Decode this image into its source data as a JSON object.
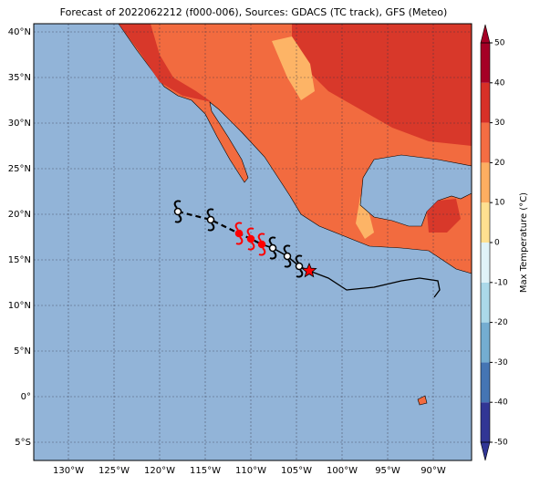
{
  "title": "Forecast of 2022062212 (f000-006), Sources: GDACS (TC track), GFS (Meteo)",
  "map": {
    "lon_lim": [
      -133.8,
      -85.8
    ],
    "lat_lim": [
      -7,
      40.9
    ],
    "lon_ticks": [
      {
        "value": -130,
        "label": "130°W"
      },
      {
        "value": -125,
        "label": "125°W"
      },
      {
        "value": -120,
        "label": "120°W"
      },
      {
        "value": -115,
        "label": "115°W"
      },
      {
        "value": -110,
        "label": "110°W"
      },
      {
        "value": -105,
        "label": "105°W"
      },
      {
        "value": -100,
        "label": "100°W"
      },
      {
        "value": -95,
        "label": "95°W"
      },
      {
        "value": -90,
        "label": "90°W"
      }
    ],
    "lat_ticks": [
      {
        "value": -5,
        "label": "5°S"
      },
      {
        "value": 0,
        "label": "0°"
      },
      {
        "value": 5,
        "label": "5°N"
      },
      {
        "value": 10,
        "label": "10°N"
      },
      {
        "value": 15,
        "label": "15°N"
      },
      {
        "value": 20,
        "label": "20°N"
      },
      {
        "value": 25,
        "label": "25°N"
      },
      {
        "value": 30,
        "label": "30°N"
      },
      {
        "value": 35,
        "label": "35°N"
      },
      {
        "value": 40,
        "label": "40°N"
      }
    ]
  },
  "colorbar": {
    "label": "Max Temperature (°C)",
    "lim": [
      -50,
      50
    ],
    "ticks": [
      -50,
      -40,
      -30,
      -20,
      -10,
      0,
      10,
      20,
      30,
      40,
      50
    ],
    "colors": [
      "#313695",
      "#4575b4",
      "#74add1",
      "#abd9e9",
      "#e0f3f8",
      "#fee090",
      "#fdae61",
      "#f46d43",
      "#d73027",
      "#a50026"
    ]
  },
  "track": [
    {
      "lon": -118,
      "lat": 20.3,
      "color": "#ffffff"
    },
    {
      "lon": -114.4,
      "lat": 19.4,
      "color": "#ffffff"
    },
    {
      "lon": -111.3,
      "lat": 17.9,
      "color": "#ff0000"
    },
    {
      "lon": -110,
      "lat": 17.3,
      "color": "#ff0000"
    },
    {
      "lon": -108.8,
      "lat": 16.7,
      "color": "#ff0000"
    },
    {
      "lon": -107.6,
      "lat": 16.3,
      "color": "#ffffff"
    },
    {
      "lon": -106,
      "lat": 15.4,
      "color": "#ffffff"
    },
    {
      "lon": -104.7,
      "lat": 14.3,
      "color": "#ffffff"
    },
    {
      "lon": -103.6,
      "lat": 13.8,
      "color": "#ff0000"
    }
  ]
}
